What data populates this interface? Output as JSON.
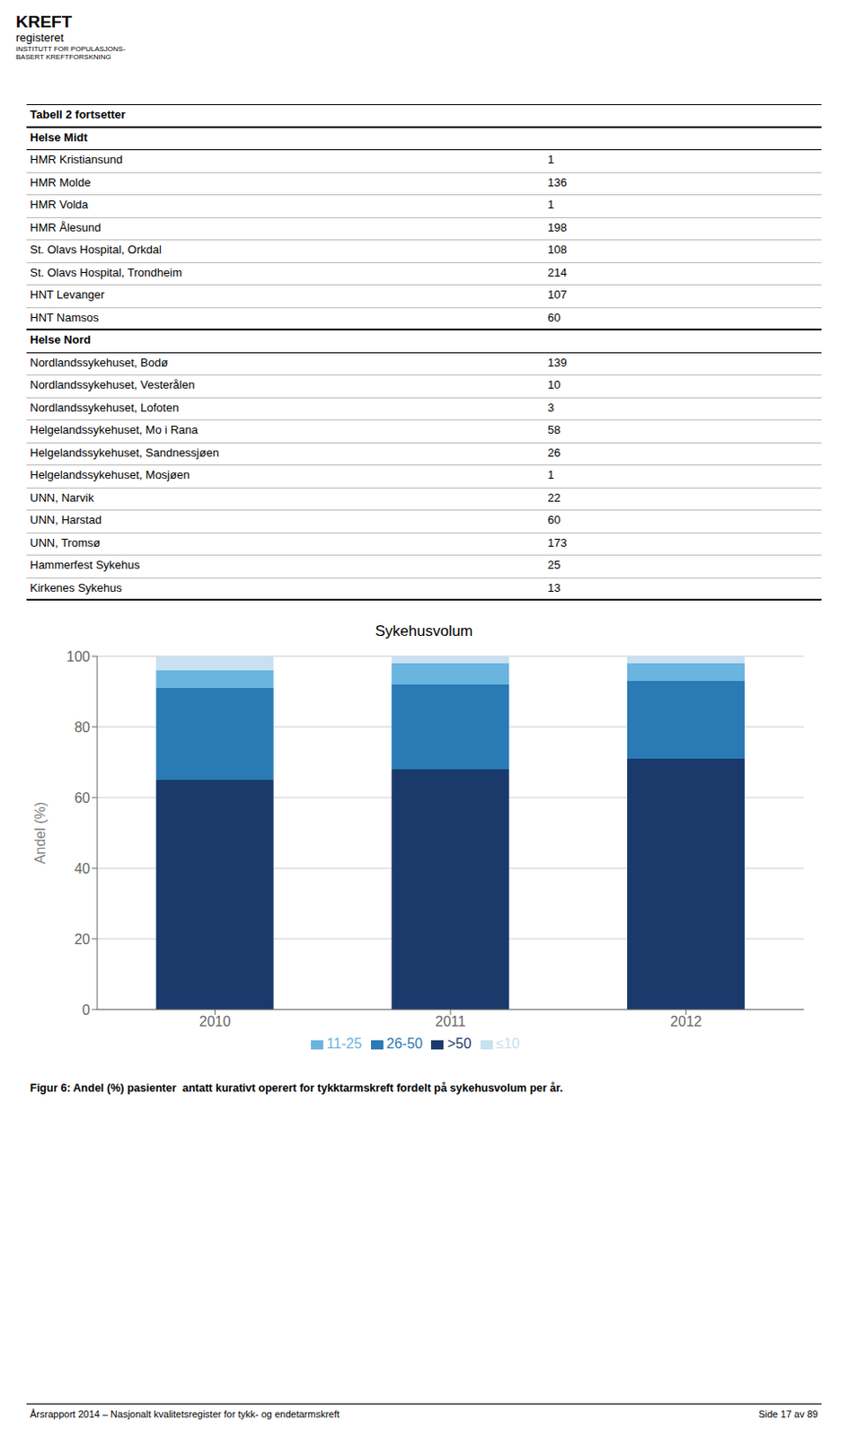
{
  "chart_data": {
    "type": "bar",
    "title": "Sykehusvolum",
    "ylabel": "Andel (%)",
    "categories": [
      "2010",
      "2011",
      "2012"
    ],
    "series": [
      {
        "name": ">50",
        "color": "#1a3a6b",
        "values": [
          65,
          68,
          71
        ]
      },
      {
        "name": "26-50",
        "color": "#2a7ab5",
        "values": [
          26,
          24,
          22
        ]
      },
      {
        "name": "11-25",
        "color": "#6ab4e0",
        "values": [
          5,
          6,
          5
        ]
      },
      {
        "name": "≤10",
        "color": "#c8e0f0",
        "values": [
          4,
          2,
          2
        ]
      }
    ],
    "stacked": true,
    "ylim": [
      0,
      100
    ],
    "yticks": [
      0,
      20,
      40,
      60,
      80,
      100
    ],
    "grid": true,
    "legend": "bottom"
  },
  "logo": [
    "KREFT",
    "registeret",
    "INSTITUTT FOR POPULASJONS-",
    "BASERT KREFTFORSKNING"
  ],
  "table": {
    "title": "Tabell 2 fortsetter",
    "sections": [
      {
        "name": "Helse Midt",
        "rows": [
          [
            "HMR Kristiansund",
            1
          ],
          [
            "HMR Molde",
            136
          ],
          [
            "HMR Volda",
            1
          ],
          [
            "HMR Ålesund",
            198
          ],
          [
            "St. Olavs Hospital, Orkdal",
            108
          ],
          [
            "St. Olavs Hospital, Trondheim",
            214
          ],
          [
            "HNT Levanger",
            107
          ],
          [
            "HNT Namsos",
            60
          ]
        ]
      },
      {
        "name": "Helse Nord",
        "rows": [
          [
            "Nordlandssykehuset, Bodø",
            139
          ],
          [
            "Nordlandssykehuset, Vesterålen",
            10
          ],
          [
            "Nordlandssykehuset, Lofoten",
            3
          ],
          [
            "Helgelandssykehuset, Mo i Rana",
            58
          ],
          [
            "Helgelandssykehuset, Sandnessjøen",
            26
          ],
          [
            "Helgelandssykehuset, Mosjøen",
            1
          ],
          [
            "UNN, Narvik",
            22
          ],
          [
            "UNN, Harstad",
            60
          ],
          [
            "UNN, Tromsø",
            173
          ],
          [
            "Hammerfest Sykehus",
            25
          ],
          [
            "Kirkenes Sykehus",
            13
          ]
        ]
      }
    ]
  },
  "caption": "Figur 6: Andel (%) pasienter  antatt kurativt operert for tykktarmskreft fordelt på sykehusvolum per år.",
  "footer": {
    "left": "Årsrapport 2014 – Nasjonalt kvalitetsregister for tykk- og endetarmskreft",
    "right": "Side 17 av 89"
  }
}
